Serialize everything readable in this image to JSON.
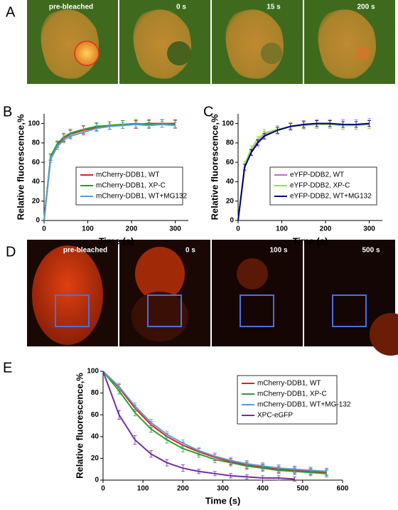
{
  "panel_labels": [
    "A",
    "B",
    "C",
    "D",
    "E"
  ],
  "image_rows": [
    {
      "labels": [
        "pre-bleached",
        "0 s",
        "15 s",
        "200 s"
      ]
    },
    {
      "labels": [
        "pre-bleached",
        "0 s",
        "100 s",
        "500 s"
      ]
    }
  ],
  "chart_data": [
    {
      "type": "line",
      "xlabel": "Time (s)",
      "ylabel": "Relative fluorescence,%",
      "x": [
        0,
        15,
        30,
        45,
        60,
        90,
        120,
        150,
        180,
        210,
        240,
        270,
        300
      ],
      "xlim": [
        0,
        330
      ],
      "xticks": [
        0,
        100,
        200,
        300
      ],
      "ylim": [
        0,
        110
      ],
      "yticks": [
        0,
        20,
        40,
        60,
        80,
        100
      ],
      "legend_position": "lower right",
      "series": [
        {
          "name": "mCherry-DDB1, WT",
          "color": "#e02020",
          "values": [
            0,
            65,
            78,
            85,
            89,
            93,
            96,
            98,
            99,
            99,
            100,
            100,
            100
          ],
          "errors": [
            0,
            3,
            3,
            4,
            4,
            4,
            4,
            4,
            4,
            4,
            4,
            4,
            4
          ]
        },
        {
          "name": "mCherry-DDB1, XP-C",
          "color": "#2ca02c",
          "values": [
            0,
            66,
            79,
            86,
            90,
            94,
            97,
            98,
            99,
            100,
            99,
            100,
            99
          ],
          "errors": [
            0,
            3,
            3,
            4,
            4,
            4,
            4,
            4,
            4,
            4,
            4,
            4,
            4
          ]
        },
        {
          "name": "mCherry-DDB1, WT+MG132",
          "color": "#5b9bd5",
          "values": [
            0,
            63,
            76,
            83,
            87,
            91,
            95,
            97,
            98,
            99,
            98,
            99,
            98
          ],
          "errors": [
            0,
            3,
            3,
            3,
            3,
            3,
            3,
            3,
            3,
            3,
            3,
            3,
            3
          ]
        }
      ]
    },
    {
      "type": "line",
      "xlabel": "Time (s)",
      "ylabel": "Relative fluorescence,%",
      "x": [
        0,
        15,
        30,
        45,
        60,
        90,
        120,
        150,
        180,
        210,
        240,
        270,
        300
      ],
      "xlim": [
        0,
        330
      ],
      "xticks": [
        0,
        100,
        200,
        300
      ],
      "ylim": [
        0,
        110
      ],
      "yticks": [
        0,
        20,
        40,
        60,
        80,
        100
      ],
      "legend_position": "lower right",
      "series": [
        {
          "name": "eYFP-DDB2, WT",
          "color": "#cc66cc",
          "values": [
            0,
            55,
            71,
            81,
            88,
            93,
            97,
            99,
            100,
            100,
            99,
            99,
            100
          ],
          "errors": [
            0,
            3,
            3,
            3,
            4,
            4,
            4,
            4,
            4,
            4,
            5,
            5,
            5
          ]
        },
        {
          "name": "eYFP-DDB2, XP-C",
          "color": "#99dd44",
          "values": [
            0,
            58,
            74,
            84,
            90,
            94,
            97,
            98,
            99,
            99,
            98,
            98,
            99
          ],
          "errors": [
            0,
            3,
            3,
            3,
            4,
            4,
            4,
            4,
            4,
            4,
            4,
            4,
            4
          ]
        },
        {
          "name": "eYFP-DDB2, WT+MG132",
          "color": "#000080",
          "values": [
            0,
            55,
            70,
            80,
            87,
            93,
            97,
            99,
            100,
            100,
            99,
            99,
            100
          ],
          "errors": [
            0,
            3,
            3,
            3,
            3,
            3,
            3,
            3,
            3,
            3,
            3,
            3,
            3
          ]
        }
      ]
    },
    {
      "type": "line",
      "xlabel": "Time (s)",
      "ylabel": "Relative fluorescence,%",
      "x": [
        0,
        40,
        80,
        120,
        160,
        200,
        240,
        280,
        320,
        360,
        400,
        440,
        480,
        520,
        560
      ],
      "xlim": [
        0,
        600
      ],
      "xticks": [
        0,
        100,
        200,
        300,
        400,
        500,
        600
      ],
      "ylim": [
        0,
        100
      ],
      "yticks": [
        0,
        20,
        40,
        60,
        80,
        100
      ],
      "legend_position": "upper right",
      "series": [
        {
          "name": "mCherry-DDB1, WT",
          "color": "#e02020",
          "values": [
            100,
            85,
            66,
            51,
            40,
            32,
            26,
            21,
            17,
            14,
            12,
            10,
            9,
            8,
            7
          ],
          "errors": [
            0,
            3,
            3,
            3,
            3,
            3,
            3,
            3,
            3,
            3,
            3,
            3,
            3,
            3,
            3
          ]
        },
        {
          "name": "mCherry-DDB1, XP-C",
          "color": "#2ca02c",
          "values": [
            100,
            82,
            62,
            47,
            37,
            29,
            24,
            19,
            16,
            13,
            11,
            9,
            8,
            7,
            6
          ],
          "errors": [
            0,
            3,
            3,
            3,
            3,
            3,
            3,
            3,
            3,
            3,
            3,
            3,
            3,
            3,
            3
          ]
        },
        {
          "name": "mCherry-DDB1, WT+MG-132",
          "color": "#5b9bd5",
          "values": [
            100,
            86,
            68,
            53,
            42,
            34,
            27,
            22,
            18,
            15,
            13,
            11,
            10,
            9,
            8
          ],
          "errors": [
            0,
            3,
            3,
            3,
            3,
            3,
            3,
            3,
            3,
            3,
            3,
            3,
            3,
            3,
            3
          ]
        },
        {
          "name": "XPC-eGFP",
          "color": "#7030a0",
          "values": [
            100,
            60,
            37,
            24,
            16,
            11,
            8,
            6,
            4,
            3,
            2,
            2,
            1,
            null,
            null
          ],
          "errors": [
            0,
            4,
            4,
            3,
            3,
            3,
            2,
            2,
            2,
            2,
            2,
            2,
            2,
            null,
            null
          ]
        }
      ]
    }
  ]
}
